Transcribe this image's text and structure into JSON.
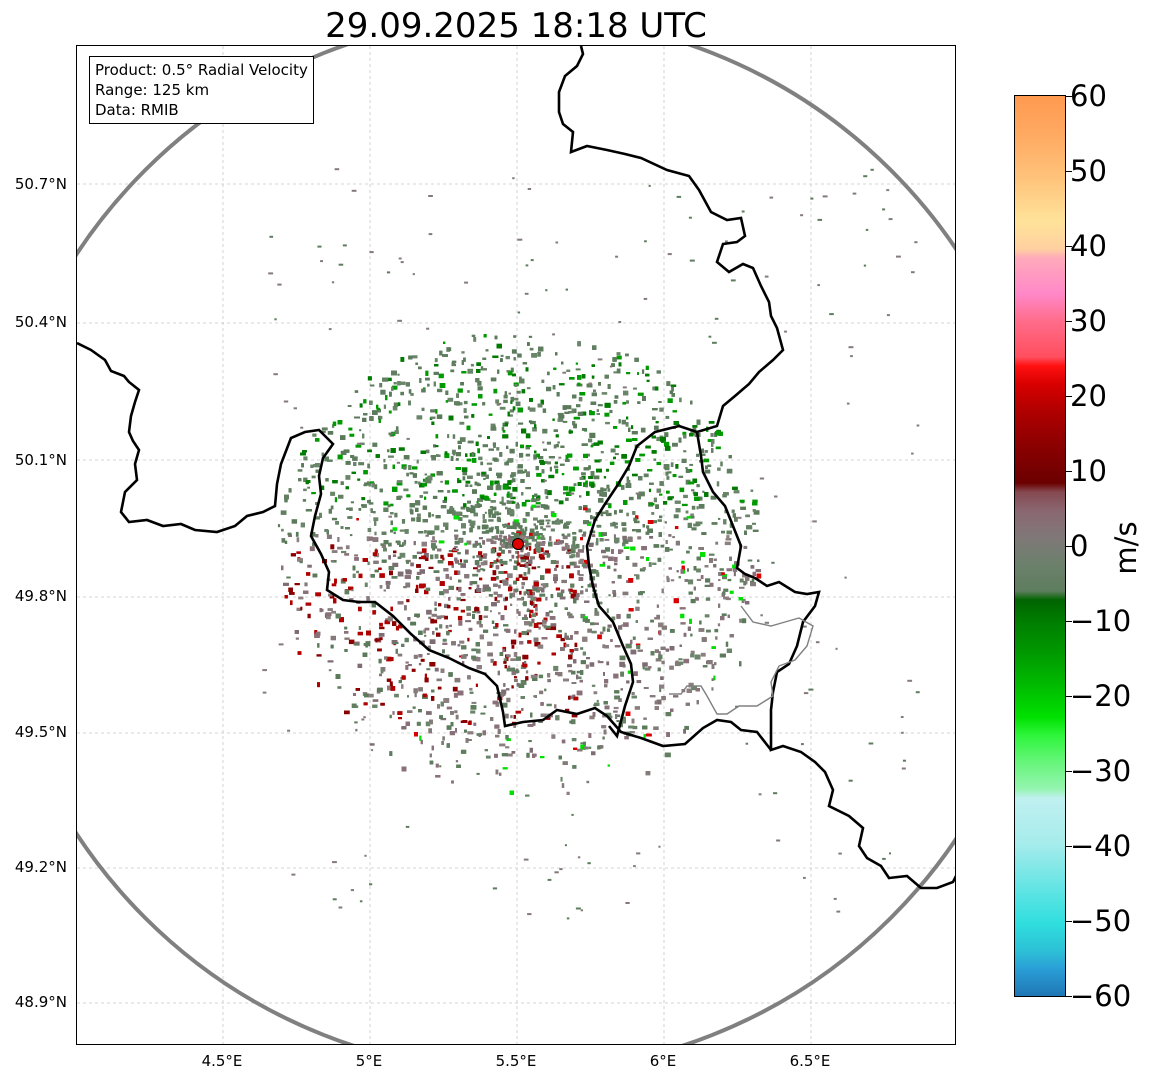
{
  "title": "29.09.2025 18:18 UTC",
  "info": {
    "product": "Product: 0.5° Radial Velocity",
    "range": "Range: 125 km",
    "data": "Data: RMIB"
  },
  "latitude_labels": [
    "50.7°N",
    "50.4°N",
    "50.1°N",
    "49.8°N",
    "49.5°N",
    "49.2°N",
    "48.9°N"
  ],
  "longitude_labels": [
    "4.5°E",
    "5°E",
    "5.5°E",
    "6°E",
    "6.5°E"
  ],
  "colorbar": {
    "unit": "m/s",
    "min": -60,
    "max": 60,
    "tick_labels": [
      "60",
      "50",
      "40",
      "30",
      "20",
      "10",
      "0",
      "−10",
      "−20",
      "−30",
      "−40",
      "−50",
      "−60"
    ]
  },
  "radar_site": {
    "lon": 5.5,
    "lat": 49.91,
    "marker": "red-dot-icon"
  },
  "colors": {
    "range_ring": "#808080",
    "border": "#000000",
    "region_border": "#808080",
    "grid": "#c8c8c8",
    "radar_marker": "#e00000"
  }
}
